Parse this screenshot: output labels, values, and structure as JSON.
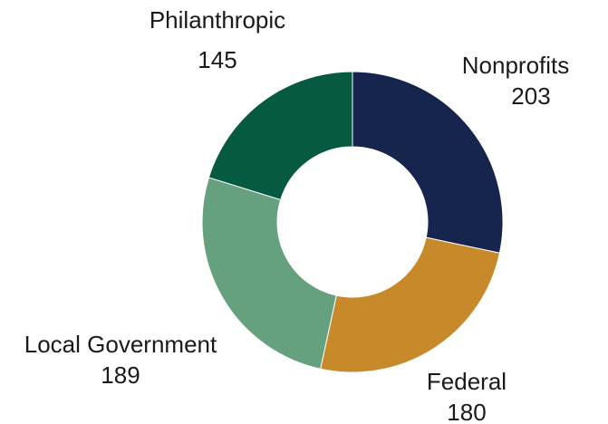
{
  "chart_data": {
    "type": "pie",
    "donut": true,
    "title": "",
    "slices": [
      {
        "label": "Nonprofits",
        "value": 203,
        "color": "#16254d"
      },
      {
        "label": "Federal",
        "value": 180,
        "color": "#c8892b"
      },
      {
        "label": "Local Government",
        "value": 189,
        "color": "#66a17f"
      },
      {
        "label": "Philanthropic",
        "value": 145,
        "color": "#075a42"
      }
    ],
    "legend": "none",
    "data_labels": "outside, category name above value"
  }
}
